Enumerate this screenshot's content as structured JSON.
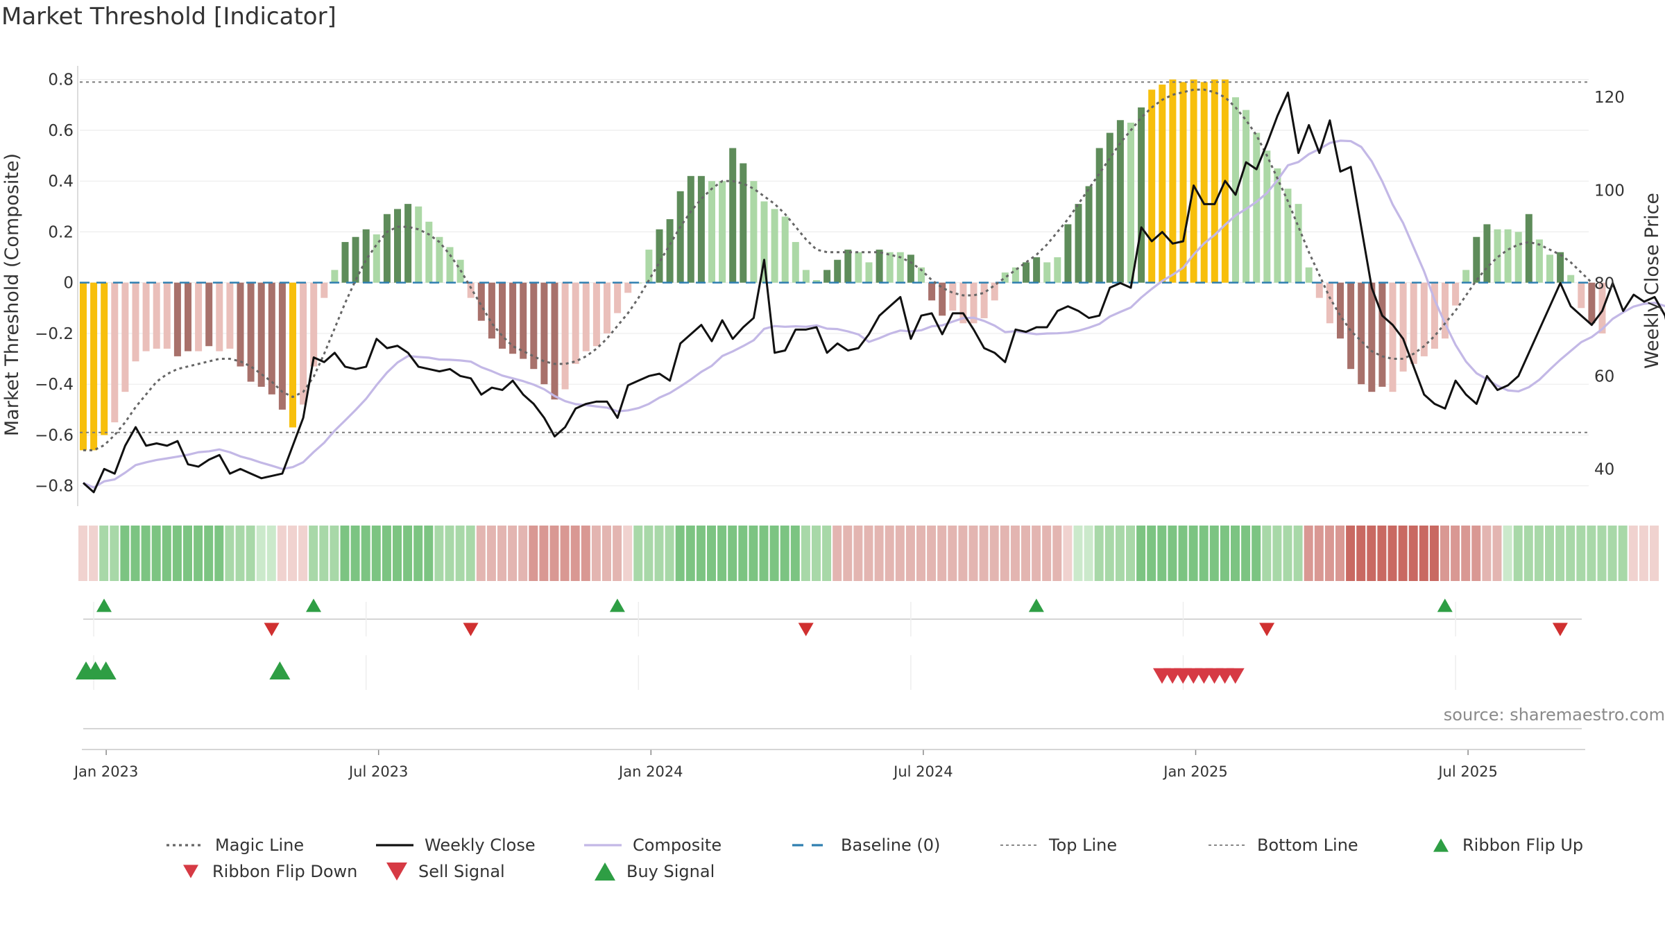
{
  "title": "Market Threshold [Indicator]",
  "source": "source: sharemaestro.com",
  "colors": {
    "gold": "#f7bf0c",
    "dark_green": "#5e8c5a",
    "light_green": "#acd8a6",
    "dark_red": "#a8716b",
    "light_red": "#eabfba",
    "composite": "#c3b8e6",
    "close": "#111111",
    "magic": "#666666",
    "baseline": "#2f7fb0",
    "signal_green": "#2e9e44",
    "signal_red": "#d63a44"
  },
  "chart_data": {
    "type": "bar",
    "x_tick_labels": [
      "Jan 2023",
      "Jul 2023",
      "Jan 2024",
      "Jul 2024",
      "Jan 2025",
      "Jul 2025"
    ],
    "x_tick_weeks": [
      1,
      27,
      53,
      79,
      105,
      131
    ],
    "y_left": {
      "label": "Market Threshold (Composite)",
      "ticks": [
        "0.8",
        "0.6",
        "0.4",
        "0.2",
        "0",
        "−0.2",
        "−0.4",
        "−0.6",
        "−0.8"
      ],
      "tick_values": [
        0.8,
        0.6,
        0.4,
        0.2,
        0,
        -0.2,
        -0.4,
        -0.6,
        -0.8
      ],
      "range": [
        -0.88,
        0.84
      ]
    },
    "y_right": {
      "label": "Weekly Close Price",
      "ticks": [
        "120",
        "100",
        "80",
        "60",
        "40"
      ],
      "tick_values": [
        120,
        100,
        80,
        60,
        40
      ],
      "range": [
        32,
        126
      ]
    },
    "top_line": 0.79,
    "bottom_line": -0.59,
    "baseline": 0,
    "composite_bars": [
      -0.66,
      -0.66,
      -0.6,
      -0.55,
      -0.43,
      -0.31,
      -0.27,
      -0.26,
      -0.26,
      -0.29,
      -0.27,
      -0.27,
      -0.25,
      -0.27,
      -0.26,
      -0.33,
      -0.39,
      -0.41,
      -0.44,
      -0.5,
      -0.57,
      -0.48,
      -0.33,
      -0.06,
      0.05,
      0.16,
      0.18,
      0.21,
      0.19,
      0.27,
      0.29,
      0.31,
      0.3,
      0.24,
      0.18,
      0.14,
      0.09,
      -0.06,
      -0.15,
      -0.22,
      -0.26,
      -0.28,
      -0.3,
      -0.34,
      -0.4,
      -0.46,
      -0.42,
      -0.32,
      -0.27,
      -0.25,
      -0.2,
      -0.12,
      -0.04,
      0.0,
      0.13,
      0.21,
      0.25,
      0.36,
      0.42,
      0.42,
      0.4,
      0.4,
      0.53,
      0.47,
      0.4,
      0.32,
      0.29,
      0.26,
      0.16,
      0.05,
      0.01,
      0.05,
      0.09,
      0.13,
      0.12,
      0.08,
      0.13,
      0.12,
      0.12,
      0.11,
      0.06,
      -0.07,
      -0.13,
      -0.11,
      -0.16,
      -0.16,
      -0.14,
      -0.07,
      0.04,
      0.06,
      0.08,
      0.1,
      0.08,
      0.1,
      0.23,
      0.31,
      0.38,
      0.53,
      0.59,
      0.64,
      0.63,
      0.69,
      0.76,
      0.78,
      0.8,
      0.79,
      0.8,
      0.79,
      0.8,
      0.8,
      0.73,
      0.68,
      0.59,
      0.52,
      0.45,
      0.37,
      0.31,
      0.06,
      -0.06,
      -0.16,
      -0.22,
      -0.34,
      -0.4,
      -0.43,
      -0.41,
      -0.43,
      -0.35,
      -0.32,
      -0.29,
      -0.26,
      -0.22,
      -0.09,
      0.05,
      0.18,
      0.23,
      0.21,
      0.21,
      0.2,
      0.27,
      0.17,
      0.11,
      0.12,
      0.03,
      -0.1,
      -0.16,
      -0.2
    ],
    "bar_styles": [
      "gold",
      "gold",
      "gold",
      "light_red",
      "light_red",
      "light_red",
      "light_red",
      "light_red",
      "light_red",
      "dark_red",
      "dark_red",
      "light_red",
      "dark_red",
      "light_red",
      "light_red",
      "dark_red",
      "dark_red",
      "dark_red",
      "dark_red",
      "dark_red",
      "gold",
      "light_red",
      "light_red",
      "light_red",
      "light_green",
      "dark_green",
      "dark_green",
      "dark_green",
      "light_green",
      "dark_green",
      "dark_green",
      "dark_green",
      "light_green",
      "light_green",
      "light_green",
      "light_green",
      "light_green",
      "light_red",
      "dark_red",
      "dark_red",
      "dark_red",
      "dark_red",
      "dark_red",
      "dark_red",
      "dark_red",
      "dark_red",
      "light_red",
      "light_red",
      "light_red",
      "light_red",
      "light_red",
      "light_red",
      "light_red",
      "light_green",
      "light_green",
      "dark_green",
      "dark_green",
      "dark_green",
      "dark_green",
      "dark_green",
      "light_green",
      "light_green",
      "dark_green",
      "dark_green",
      "light_green",
      "light_green",
      "light_green",
      "light_green",
      "light_green",
      "light_green",
      "light_green",
      "dark_green",
      "dark_green",
      "dark_green",
      "light_green",
      "light_green",
      "dark_green",
      "light_green",
      "light_green",
      "dark_green",
      "light_green",
      "dark_red",
      "dark_red",
      "light_red",
      "light_red",
      "light_red",
      "light_red",
      "light_red",
      "light_green",
      "light_green",
      "dark_green",
      "dark_green",
      "light_green",
      "light_green",
      "dark_green",
      "dark_green",
      "dark_green",
      "dark_green",
      "dark_green",
      "dark_green",
      "light_green",
      "dark_green",
      "gold",
      "gold",
      "gold",
      "gold",
      "gold",
      "gold",
      "gold",
      "gold",
      "light_green",
      "light_green",
      "light_green",
      "light_green",
      "light_green",
      "light_green",
      "light_green",
      "light_green",
      "light_red",
      "light_red",
      "dark_red",
      "dark_red",
      "dark_red",
      "dark_red",
      "dark_red",
      "light_red",
      "light_red",
      "light_red",
      "light_red",
      "light_red",
      "light_red",
      "light_red",
      "light_green",
      "dark_green",
      "dark_green",
      "light_green",
      "light_green",
      "light_green",
      "dark_green",
      "light_green",
      "light_green",
      "dark_green",
      "light_green",
      "light_red",
      "dark_red",
      "light_red"
    ],
    "magic_line": [
      -0.66,
      -0.66,
      -0.64,
      -0.6,
      -0.55,
      -0.49,
      -0.44,
      -0.39,
      -0.36,
      -0.34,
      -0.33,
      -0.32,
      -0.31,
      -0.3,
      -0.3,
      -0.31,
      -0.33,
      -0.36,
      -0.39,
      -0.43,
      -0.45,
      -0.43,
      -0.37,
      -0.28,
      -0.18,
      -0.08,
      0.01,
      0.09,
      0.15,
      0.2,
      0.22,
      0.22,
      0.21,
      0.19,
      0.16,
      0.11,
      0.05,
      -0.02,
      -0.09,
      -0.16,
      -0.21,
      -0.25,
      -0.27,
      -0.29,
      -0.31,
      -0.32,
      -0.32,
      -0.31,
      -0.29,
      -0.26,
      -0.22,
      -0.17,
      -0.12,
      -0.06,
      0.01,
      0.08,
      0.15,
      0.22,
      0.28,
      0.33,
      0.37,
      0.4,
      0.4,
      0.39,
      0.37,
      0.34,
      0.31,
      0.27,
      0.22,
      0.17,
      0.13,
      0.12,
      0.12,
      0.12,
      0.12,
      0.12,
      0.12,
      0.11,
      0.1,
      0.08,
      0.05,
      0.01,
      -0.02,
      -0.04,
      -0.05,
      -0.05,
      -0.04,
      -0.01,
      0.02,
      0.05,
      0.08,
      0.11,
      0.15,
      0.2,
      0.25,
      0.31,
      0.37,
      0.43,
      0.49,
      0.55,
      0.6,
      0.65,
      0.69,
      0.72,
      0.74,
      0.75,
      0.76,
      0.76,
      0.75,
      0.73,
      0.69,
      0.64,
      0.58,
      0.5,
      0.41,
      0.32,
      0.22,
      0.12,
      0.03,
      -0.06,
      -0.13,
      -0.19,
      -0.23,
      -0.27,
      -0.29,
      -0.3,
      -0.3,
      -0.28,
      -0.25,
      -0.21,
      -0.16,
      -0.11,
      -0.05,
      0.01,
      0.06,
      0.1,
      0.13,
      0.15,
      0.16,
      0.15,
      0.13,
      0.11,
      0.08,
      0.04,
      0.0
    ],
    "weekly_close": [
      37,
      35,
      40,
      39,
      45,
      49,
      45,
      45.5,
      45,
      46,
      41,
      40.5,
      42,
      43,
      39,
      40,
      39,
      38,
      38.5,
      39,
      45,
      51,
      64,
      63,
      65,
      62,
      61.5,
      62,
      68,
      66,
      66.5,
      65,
      62,
      61.5,
      61,
      61.5,
      60,
      59.5,
      56,
      57.5,
      57,
      59,
      56,
      54,
      51,
      47,
      49,
      53,
      54,
      54.5,
      54.5,
      51,
      58,
      59,
      60,
      60.5,
      59,
      67,
      69,
      71,
      67.5,
      72,
      68,
      70.5,
      72.5,
      85,
      65,
      65.5,
      70,
      70,
      70.5,
      65,
      67,
      65.5,
      66,
      69,
      73,
      75,
      77,
      68,
      73,
      73.5,
      69,
      73.5,
      73.5,
      70,
      66,
      65,
      63,
      70,
      69.5,
      70.5,
      70.5,
      74,
      75,
      74,
      72.5,
      73,
      79,
      80,
      79,
      92,
      89,
      91,
      88.5,
      89,
      101,
      97,
      97,
      102,
      99,
      106,
      104.5,
      110,
      116,
      121,
      108,
      114,
      108,
      115,
      104,
      105,
      92,
      79,
      73,
      71,
      68,
      62,
      56,
      54,
      53,
      59,
      56,
      54,
      60,
      57,
      58,
      60,
      65,
      70,
      75,
      80,
      75,
      73,
      71,
      74,
      80,
      74,
      77.5,
      76,
      77,
      73,
      63,
      63.5,
      68,
      76
    ]
  },
  "ribbon": {
    "levels": [
      -1,
      -1,
      2,
      2,
      3,
      3,
      3,
      3,
      3,
      3,
      3,
      3,
      3,
      3,
      2,
      2,
      2,
      1,
      1,
      -1,
      -1,
      -1,
      2,
      2,
      2,
      3,
      3,
      3,
      3,
      3,
      3,
      3,
      3,
      3,
      2,
      2,
      2,
      2,
      -2,
      -2,
      -2,
      -2,
      -2,
      -3,
      -3,
      -3,
      -3,
      -3,
      -3,
      -2,
      -2,
      -2,
      -1,
      2,
      2,
      2,
      2,
      3,
      3,
      3,
      3,
      3,
      3,
      3,
      3,
      3,
      3,
      3,
      3,
      2,
      2,
      2,
      -2,
      -2,
      -2,
      -2,
      -2,
      -2,
      -2,
      -2,
      -2,
      -2,
      -2,
      -2,
      -2,
      -2,
      -2,
      -2,
      -2,
      -2,
      -2,
      -2,
      -2,
      -2,
      -1,
      1,
      1,
      2,
      2,
      2,
      2,
      3,
      3,
      3,
      3,
      3,
      3,
      3,
      3,
      3,
      3,
      3,
      3,
      2,
      2,
      2,
      2,
      -3,
      -3,
      -3,
      -3,
      -4,
      -4,
      -4,
      -4,
      -4,
      -4,
      -4,
      -4,
      -4,
      -3,
      -3,
      -3,
      -3,
      -2,
      -2,
      1,
      2,
      2,
      2,
      2,
      2,
      2,
      2,
      2,
      2,
      2,
      2,
      -1,
      -1,
      -1
    ]
  },
  "signals_row1": {
    "flip_up_weeks": [
      0,
      20,
      49,
      89,
      128
    ],
    "flip_down_weeks": [
      16,
      35,
      67,
      111,
      139
    ]
  },
  "signals_row2": {
    "buy_weeks": [
      0,
      0.9,
      1.9,
      18.5
    ],
    "sell_weeks": [
      100,
      101,
      102,
      103,
      104,
      105,
      106,
      107
    ]
  },
  "legend": [
    {
      "label": "Magic Line",
      "kind": "dotted",
      "color": "#666666"
    },
    {
      "label": "Weekly Close",
      "kind": "solid",
      "color": "#111111"
    },
    {
      "label": "Composite",
      "kind": "solid",
      "color": "#c3b8e6"
    },
    {
      "label": "Baseline (0)",
      "kind": "dashed",
      "color": "#2f7fb0"
    },
    {
      "label": "Top Line",
      "kind": "dotted-thin",
      "color": "#888888"
    },
    {
      "label": "Bottom Line",
      "kind": "dotted-thin",
      "color": "#888888"
    },
    {
      "label": "Ribbon Flip Up",
      "kind": "tri-up-small",
      "color": "#2e9e44"
    },
    {
      "label": "Ribbon Flip Down",
      "kind": "tri-down-small",
      "color": "#d63a44"
    },
    {
      "label": "Sell Signal",
      "kind": "tri-down",
      "color": "#d63a44"
    },
    {
      "label": "Buy Signal",
      "kind": "tri-up",
      "color": "#2e9e44"
    }
  ]
}
